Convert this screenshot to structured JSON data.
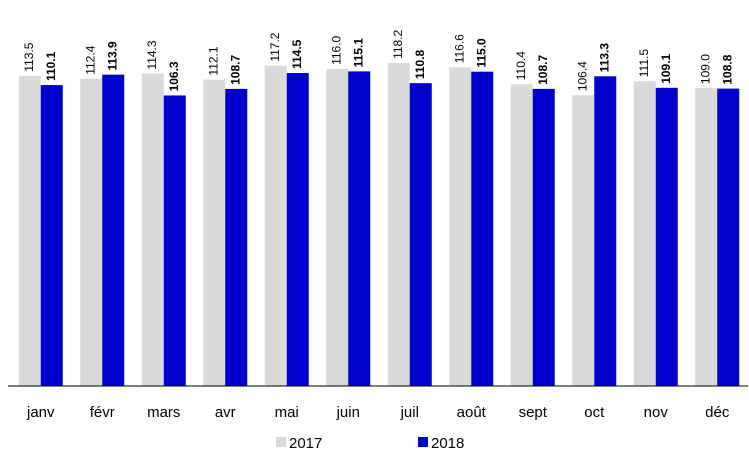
{
  "chart_data": {
    "type": "bar",
    "categories": [
      "janv",
      "févr",
      "mars",
      "avr",
      "mai",
      "juin",
      "juil",
      "août",
      "sept",
      "oct",
      "nov",
      "déc"
    ],
    "series": [
      {
        "name": "2017",
        "color": "#d9d9d9",
        "values": [
          113.5,
          112.4,
          114.3,
          112.1,
          117.2,
          116.0,
          118.2,
          116.6,
          110.4,
          106.4,
          111.5,
          109.0
        ],
        "value_labels": [
          "113.5",
          "112.4",
          "114.3",
          "112.1",
          "117.2",
          "116.0",
          "118.2",
          "116.6",
          "110.4",
          "106.4",
          "111.5",
          "109.0"
        ]
      },
      {
        "name": "2018",
        "color": "#0000cc",
        "values": [
          110.1,
          113.9,
          106.3,
          108.7,
          114.5,
          115.1,
          110.8,
          115.0,
          108.7,
          113.3,
          109.1,
          108.8
        ],
        "value_labels": [
          "110.1",
          "113.9",
          "106.3",
          "108.7",
          "114.5",
          "115.1",
          "110.8",
          "115.0",
          "108.7",
          "113.3",
          "109.1",
          "108.8"
        ]
      }
    ],
    "ylim": [
      0,
      120
    ],
    "legend": "bottom"
  }
}
